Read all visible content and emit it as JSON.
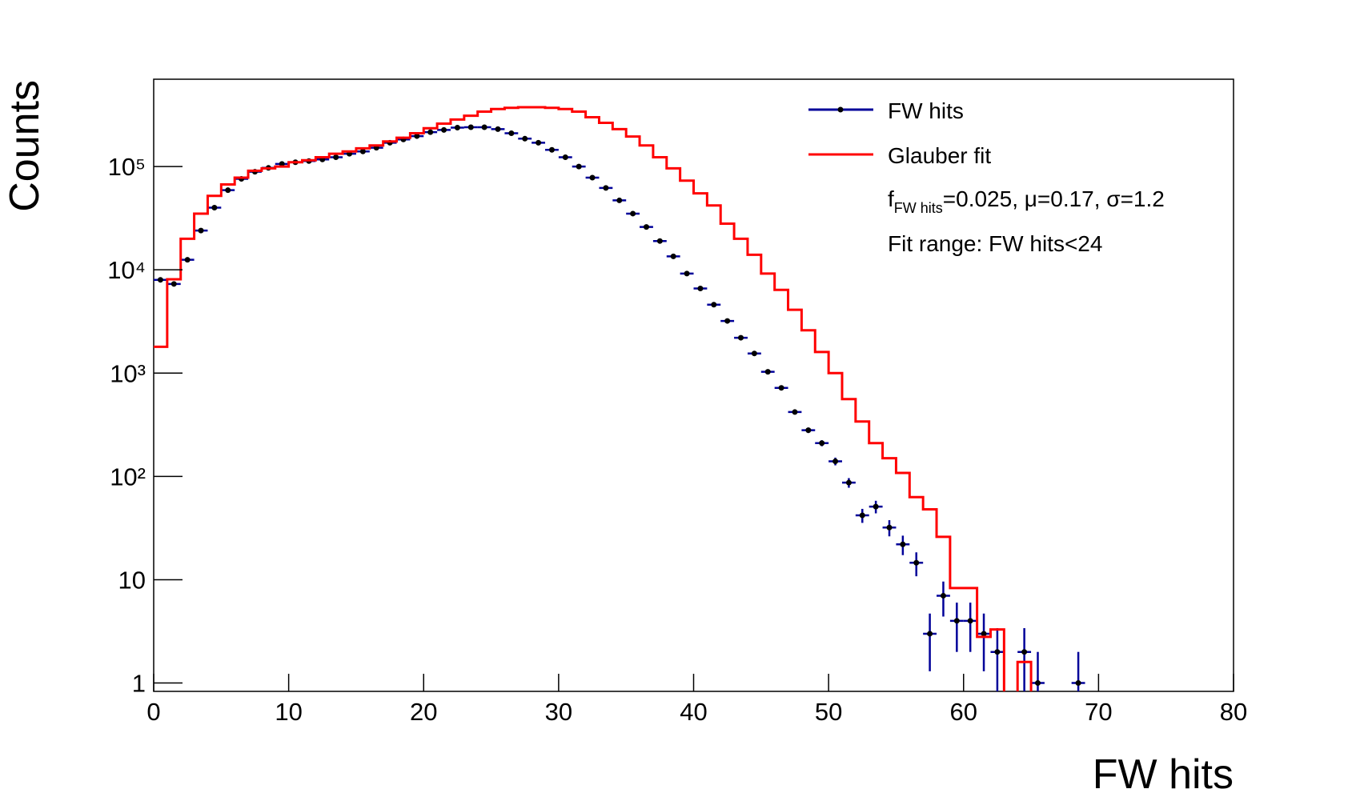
{
  "chart_data": {
    "type": "histogram",
    "x_label": "FW hits",
    "y_label": "Counts",
    "log_y": true,
    "bins": [
      0,
      1,
      2,
      3,
      4,
      5,
      6,
      7,
      8,
      9,
      10,
      11,
      12,
      13,
      14,
      15,
      16,
      17,
      18,
      19,
      20,
      21,
      22,
      23,
      24,
      25,
      26,
      27,
      28,
      29,
      30,
      31,
      32,
      33,
      34,
      35,
      36,
      37,
      38,
      39,
      40,
      41,
      42,
      43,
      44,
      45,
      46,
      47,
      48,
      49,
      50,
      51,
      52,
      53,
      54,
      55,
      56,
      57,
      58,
      59,
      60,
      61,
      62,
      63,
      64,
      65,
      66,
      67,
      68,
      69,
      70,
      71,
      72,
      73,
      74,
      75,
      76,
      77,
      78,
      79,
      80
    ],
    "xlim": [
      0,
      80
    ],
    "xticks": [
      0,
      10,
      20,
      30,
      40,
      50,
      60,
      70,
      80
    ],
    "ylim": [
      0.83,
      700000
    ],
    "yticks": [
      1,
      10,
      {
        "value": 100,
        "label": "10²"
      },
      {
        "value": 1000,
        "label": "10³"
      },
      {
        "value": 10000,
        "label": "10⁴"
      },
      {
        "value": 100000,
        "label": "10⁵"
      }
    ],
    "series": [
      {
        "name": "FW hits",
        "color": "#000099",
        "style": "points",
        "values": [
          8000,
          7300,
          12500,
          24000,
          40000,
          59000,
          76000,
          89000,
          97000,
          106000,
          110000,
          113000,
          117000,
          123000,
          133000,
          140000,
          152000,
          170000,
          183000,
          197000,
          215000,
          226000,
          238000,
          240000,
          240000,
          230000,
          210000,
          186000,
          170000,
          145000,
          123000,
          100000,
          78000,
          62000,
          47000,
          35000,
          26000,
          19000,
          13500,
          9200,
          6600,
          4600,
          3200,
          2200,
          1550,
          1030,
          720,
          420,
          280,
          210,
          140,
          87,
          42,
          51,
          32,
          22,
          14.6,
          3,
          7,
          4,
          4,
          3,
          2,
          null,
          2,
          1,
          null,
          null,
          1,
          null,
          null,
          null,
          null,
          null,
          null,
          null,
          null,
          null,
          null,
          null
        ],
        "errors": [
          89,
          85,
          112,
          155,
          200,
          243,
          276,
          298,
          311,
          326,
          332,
          336,
          342,
          351,
          365,
          374,
          390,
          412,
          428,
          444,
          464,
          475,
          488,
          490,
          490,
          480,
          458,
          431,
          412,
          381,
          351,
          316,
          279,
          249,
          217,
          187,
          161,
          138,
          116,
          96,
          81,
          68,
          57,
          47,
          39,
          32,
          27,
          20,
          17,
          14,
          12,
          9.3,
          6.5,
          7.1,
          5.7,
          4.7,
          3.8,
          1.7,
          2.6,
          2,
          2,
          1.7,
          1.4,
          null,
          1.4,
          1,
          null,
          null,
          1,
          null,
          null,
          null,
          null,
          null,
          null,
          null,
          null,
          null,
          null,
          null
        ]
      },
      {
        "name": "Glauber fit",
        "color": "#ff0000",
        "style": "step",
        "values": [
          1800,
          8100,
          20000,
          35000,
          52000,
          67000,
          78000,
          91000,
          96000,
          100000,
          110000,
          115000,
          123000,
          133000,
          140000,
          150000,
          160000,
          175000,
          190000,
          210000,
          235000,
          260000,
          285000,
          310000,
          340000,
          360000,
          370000,
          375000,
          375000,
          370000,
          360000,
          340000,
          300000,
          265000,
          230000,
          195000,
          160000,
          123000,
          96000,
          73000,
          55000,
          42000,
          28000,
          20000,
          14000,
          9200,
          6400,
          4100,
          2600,
          1600,
          1000,
          560,
          340,
          210,
          150,
          108,
          63,
          48,
          26,
          8.3,
          8.3,
          2.8,
          3.3,
          0,
          1.6,
          0,
          0,
          0,
          0,
          0,
          0,
          0,
          0,
          0,
          0,
          0,
          0,
          0,
          0,
          0
        ]
      }
    ],
    "fit_params": {
      "symbol": "f",
      "subscript": "FW hits",
      "text": "=0.025, μ=0.17, σ=1.2"
    },
    "fit_range": "Fit range: FW hits<24"
  }
}
